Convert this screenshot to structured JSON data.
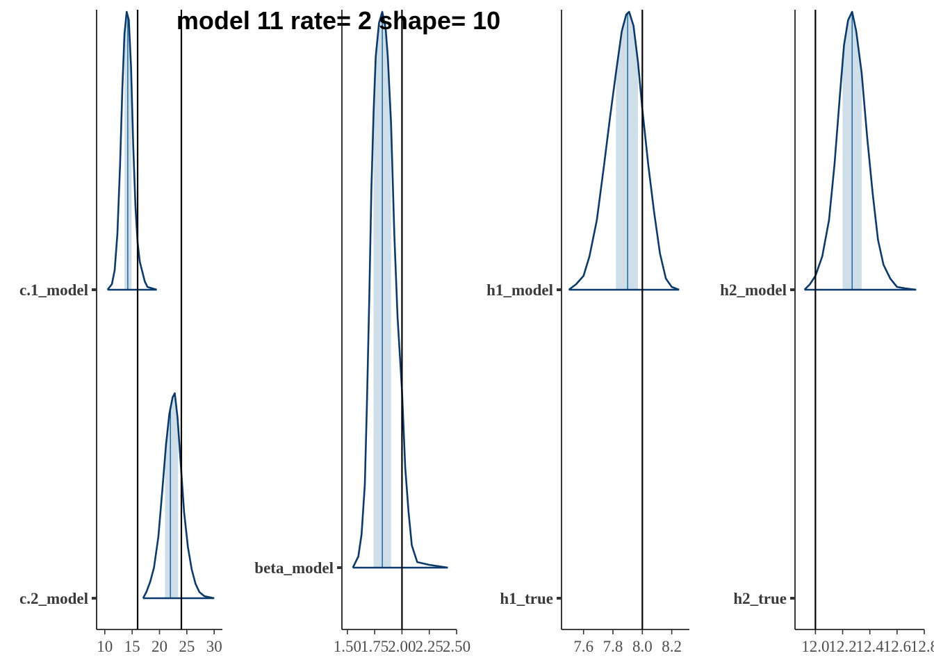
{
  "title": "model 11 rate= 2 shape= 10",
  "colors": {
    "density": "#0b3a6a",
    "interval_fill": "#cfdfe9",
    "median": "#1f6a9a",
    "reference": "#000000",
    "axis": "#000000",
    "label": "#3a3a3a"
  },
  "chart_data": [
    {
      "type": "area",
      "panel": "c",
      "xlim": [
        8.5,
        31.5
      ],
      "x_ticks": [
        10,
        15,
        20,
        25,
        30
      ],
      "x_tick_labels": [
        "10",
        "15",
        "20",
        "25",
        "30"
      ],
      "y_categories": [
        "c.1_model",
        "c.2_model"
      ],
      "reference_lines": [
        16,
        24
      ],
      "series": [
        {
          "name": "c.1_model",
          "row": 0,
          "range": [
            10.5,
            19.5
          ],
          "interval": [
            13.6,
            14.9
          ],
          "median": 14.2,
          "density": [
            [
              10.5,
              0
            ],
            [
              11.3,
              0.02
            ],
            [
              11.8,
              0.07
            ],
            [
              12.3,
              0.2
            ],
            [
              12.8,
              0.45
            ],
            [
              13.2,
              0.72
            ],
            [
              13.6,
              0.92
            ],
            [
              14.0,
              1.0
            ],
            [
              14.4,
              0.97
            ],
            [
              14.8,
              0.8
            ],
            [
              15.2,
              0.52
            ],
            [
              15.6,
              0.3
            ],
            [
              16.0,
              0.17
            ],
            [
              16.4,
              0.1
            ],
            [
              16.8,
              0.07
            ],
            [
              17.3,
              0.03
            ],
            [
              17.8,
              0.01
            ],
            [
              19.5,
              0
            ]
          ]
        },
        {
          "name": "c.2_model",
          "row": 1,
          "range": [
            17.0,
            30.0
          ],
          "interval": [
            21.0,
            23.4
          ],
          "median": 22.0,
          "density": [
            [
              17.0,
              0
            ],
            [
              17.6,
              0.03
            ],
            [
              18.3,
              0.08
            ],
            [
              19.0,
              0.15
            ],
            [
              19.8,
              0.3
            ],
            [
              20.5,
              0.52
            ],
            [
              21.2,
              0.75
            ],
            [
              21.8,
              0.9
            ],
            [
              22.4,
              0.98
            ],
            [
              22.8,
              1.0
            ],
            [
              23.3,
              0.88
            ],
            [
              23.9,
              0.65
            ],
            [
              24.5,
              0.42
            ],
            [
              25.2,
              0.25
            ],
            [
              25.9,
              0.14
            ],
            [
              26.6,
              0.07
            ],
            [
              27.3,
              0.03
            ],
            [
              28.2,
              0.01
            ],
            [
              30.0,
              0
            ]
          ]
        }
      ]
    },
    {
      "type": "area",
      "panel": "beta",
      "xlim": [
        1.45,
        2.5
      ],
      "x_ticks": [
        1.5,
        1.75,
        2.0,
        2.25,
        2.5
      ],
      "x_tick_labels": [
        "1.50",
        "1.75",
        "2.00",
        "2.25",
        "2.50"
      ],
      "y_categories": [
        "beta_model"
      ],
      "reference_lines": [
        2.0
      ],
      "series": [
        {
          "name": "beta_model",
          "row": 0,
          "range": [
            1.55,
            2.42
          ],
          "interval": [
            1.74,
            1.9
          ],
          "median": 1.82,
          "density": [
            [
              1.55,
              0
            ],
            [
              1.6,
              0.02
            ],
            [
              1.63,
              0.06
            ],
            [
              1.66,
              0.15
            ],
            [
              1.68,
              0.3
            ],
            [
              1.7,
              0.48
            ],
            [
              1.72,
              0.68
            ],
            [
              1.74,
              0.82
            ],
            [
              1.76,
              0.92
            ],
            [
              1.79,
              0.98
            ],
            [
              1.82,
              1.0
            ],
            [
              1.85,
              0.97
            ],
            [
              1.87,
              0.92
            ],
            [
              1.9,
              0.8
            ],
            [
              1.93,
              0.6
            ],
            [
              1.96,
              0.45
            ],
            [
              2.0,
              0.32
            ],
            [
              2.03,
              0.18
            ],
            [
              2.06,
              0.1
            ],
            [
              2.09,
              0.04
            ],
            [
              2.14,
              0.01
            ],
            [
              2.25,
              0.005
            ],
            [
              2.42,
              0
            ]
          ]
        }
      ]
    },
    {
      "type": "area",
      "panel": "h1",
      "xlim": [
        7.45,
        8.32
      ],
      "x_ticks": [
        7.6,
        7.8,
        8.0,
        8.2
      ],
      "x_tick_labels": [
        "7.6",
        "7.8",
        "8.0",
        "8.2"
      ],
      "y_categories": [
        "h1_model",
        "h1_true"
      ],
      "reference_lines": [
        8.0
      ],
      "series": [
        {
          "name": "h1_model",
          "row": 0,
          "range": [
            7.5,
            8.25
          ],
          "interval": [
            7.82,
            7.97
          ],
          "median": 7.9,
          "density": [
            [
              7.5,
              0
            ],
            [
              7.55,
              0.02
            ],
            [
              7.6,
              0.05
            ],
            [
              7.64,
              0.12
            ],
            [
              7.69,
              0.25
            ],
            [
              7.74,
              0.45
            ],
            [
              7.78,
              0.62
            ],
            [
              7.82,
              0.78
            ],
            [
              7.86,
              0.93
            ],
            [
              7.89,
              0.99
            ],
            [
              7.91,
              1.0
            ],
            [
              7.94,
              0.95
            ],
            [
              7.97,
              0.82
            ],
            [
              8.0,
              0.65
            ],
            [
              8.04,
              0.45
            ],
            [
              8.08,
              0.28
            ],
            [
              8.12,
              0.13
            ],
            [
              8.16,
              0.04
            ],
            [
              8.2,
              0.01
            ],
            [
              8.25,
              0
            ]
          ]
        }
      ]
    },
    {
      "type": "area",
      "panel": "h2",
      "xlim": [
        11.85,
        12.8
      ],
      "x_ticks": [
        12.0,
        12.2,
        12.4,
        12.6,
        12.8
      ],
      "x_tick_labels": [
        "12.0",
        "12.2",
        "12.4",
        "12.6",
        "12.8"
      ],
      "y_categories": [
        "h2_model",
        "h2_true"
      ],
      "reference_lines": [
        12.0
      ],
      "series": [
        {
          "name": "h2_model",
          "row": 0,
          "range": [
            11.92,
            12.74
          ],
          "interval": [
            12.2,
            12.34
          ],
          "median": 12.27,
          "density": [
            [
              11.92,
              0
            ],
            [
              11.96,
              0.02
            ],
            [
              12.0,
              0.05
            ],
            [
              12.05,
              0.12
            ],
            [
              12.1,
              0.25
            ],
            [
              12.14,
              0.45
            ],
            [
              12.18,
              0.7
            ],
            [
              12.21,
              0.88
            ],
            [
              12.24,
              0.97
            ],
            [
              12.27,
              1.0
            ],
            [
              12.3,
              0.93
            ],
            [
              12.34,
              0.78
            ],
            [
              12.38,
              0.55
            ],
            [
              12.42,
              0.35
            ],
            [
              12.46,
              0.18
            ],
            [
              12.5,
              0.09
            ],
            [
              12.55,
              0.04
            ],
            [
              12.6,
              0.01
            ],
            [
              12.66,
              0.005
            ],
            [
              12.74,
              0
            ]
          ]
        }
      ]
    }
  ]
}
